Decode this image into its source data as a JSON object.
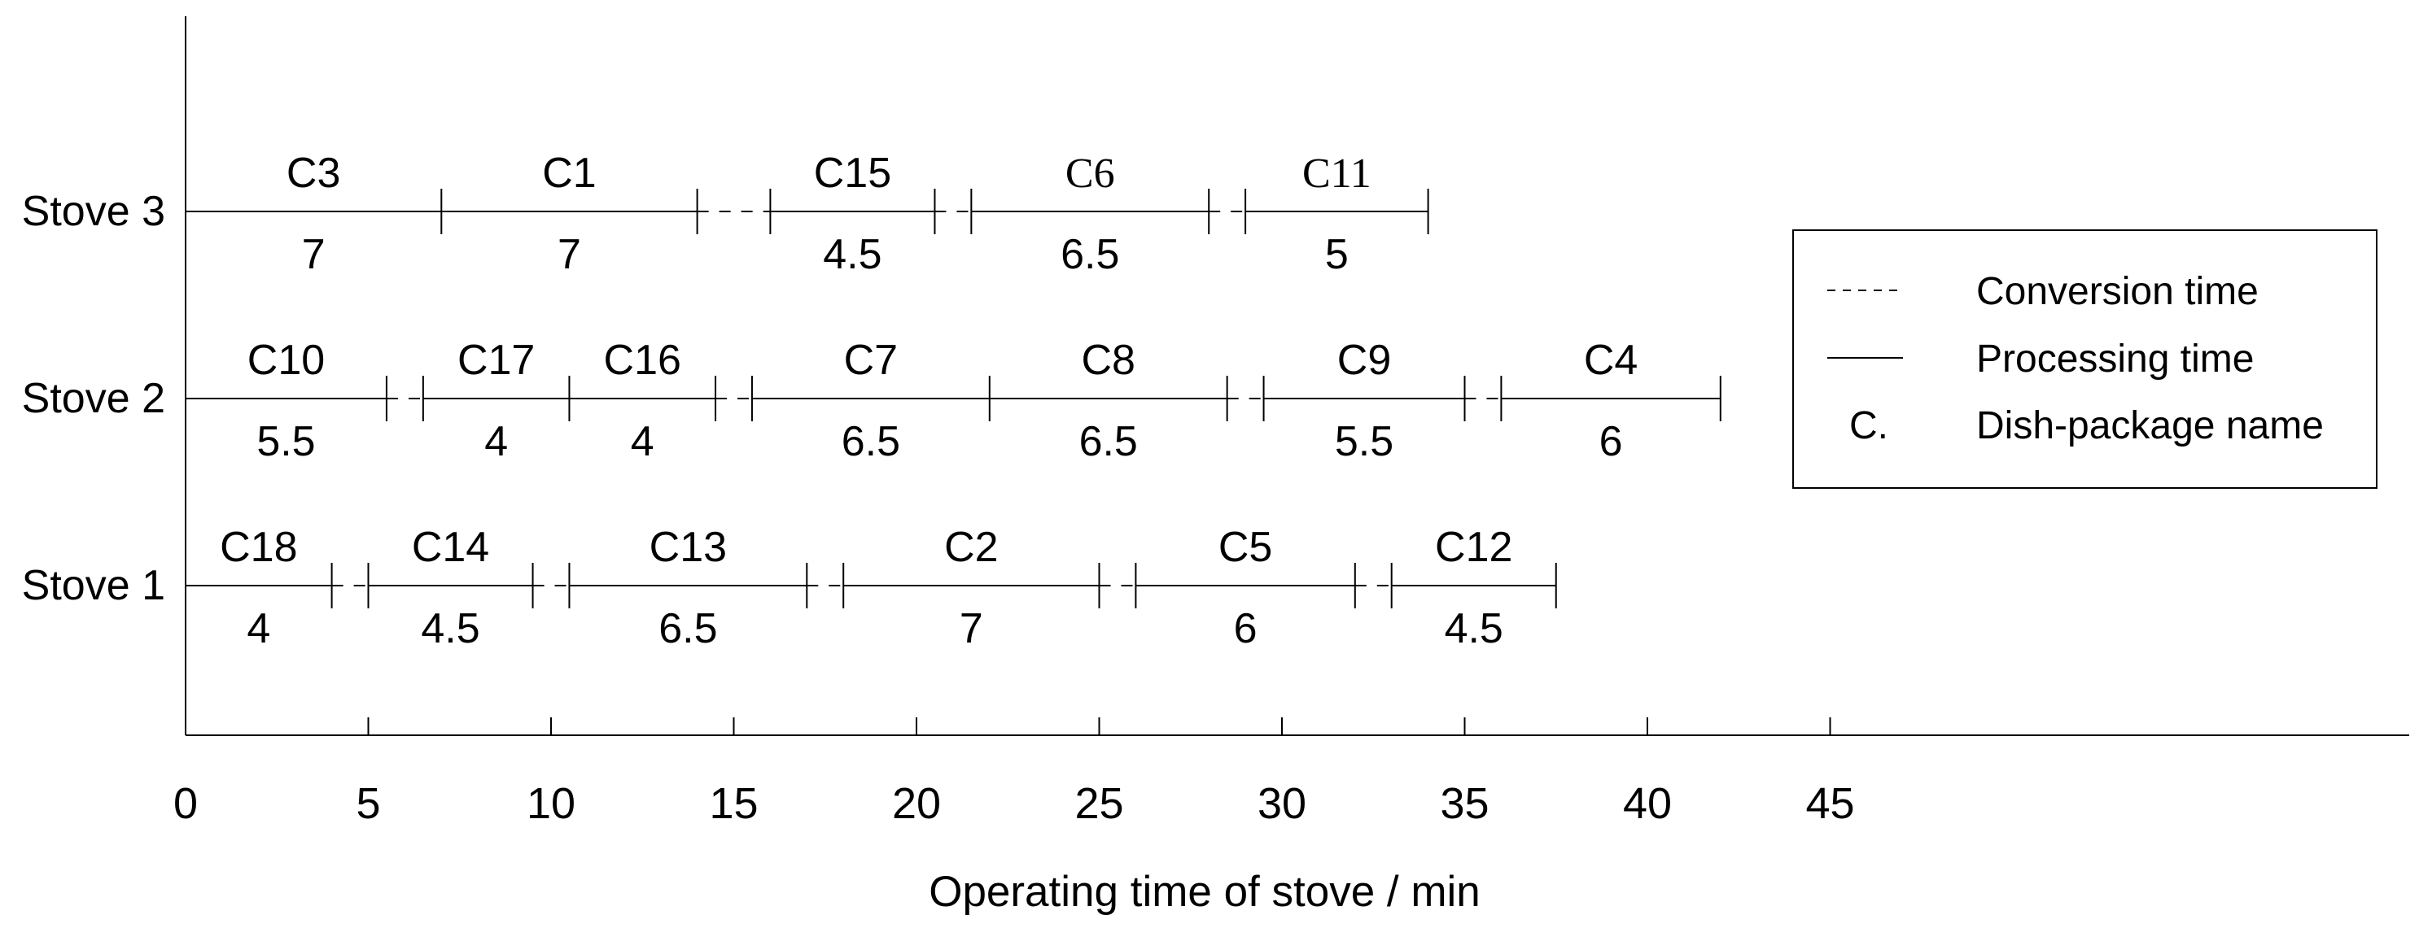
{
  "chart_data": {
    "type": "gantt",
    "title": "",
    "xlabel": "Operating time of stove / min",
    "ylabel": "",
    "x_ticks": [
      0,
      5,
      10,
      15,
      20,
      25,
      30,
      35,
      40,
      45
    ],
    "xlim": [
      0,
      61
    ],
    "grid": false,
    "legend": {
      "position": "right",
      "items": [
        {
          "sample": "dashed-line",
          "label": "Conversion time"
        },
        {
          "sample": "solid-line",
          "label": "Processing time"
        },
        {
          "sample": "C.",
          "label": "Dish-package name"
        }
      ]
    },
    "rows": [
      {
        "label": "Stove 3",
        "segments": [
          {
            "kind": "processing",
            "name": "C3",
            "duration": 7,
            "start": 0,
            "end": 7
          },
          {
            "kind": "processing",
            "name": "C1",
            "duration": 7,
            "start": 7,
            "end": 14
          },
          {
            "kind": "conversion",
            "start": 14,
            "end": 16
          },
          {
            "kind": "processing",
            "name": "C15",
            "duration": 4.5,
            "start": 16,
            "end": 20.5
          },
          {
            "kind": "conversion",
            "start": 20.5,
            "end": 21.5
          },
          {
            "kind": "processing",
            "name": "C6",
            "duration": 6.5,
            "start": 21.5,
            "end": 28,
            "serif": true
          },
          {
            "kind": "conversion",
            "start": 28,
            "end": 29
          },
          {
            "kind": "processing",
            "name": "C11",
            "duration": 5,
            "start": 29,
            "end": 34,
            "serif": true
          }
        ]
      },
      {
        "label": "Stove 2",
        "segments": [
          {
            "kind": "processing",
            "name": "C10",
            "duration": 5.5,
            "start": 0,
            "end": 5.5
          },
          {
            "kind": "conversion",
            "start": 5.5,
            "end": 6.5
          },
          {
            "kind": "processing",
            "name": "C17",
            "duration": 4,
            "start": 6.5,
            "end": 10.5
          },
          {
            "kind": "processing",
            "name": "C16",
            "duration": 4,
            "start": 10.5,
            "end": 14.5
          },
          {
            "kind": "conversion",
            "start": 14.5,
            "end": 15.5
          },
          {
            "kind": "processing",
            "name": "C7",
            "duration": 6.5,
            "start": 15.5,
            "end": 22
          },
          {
            "kind": "processing",
            "name": "C8",
            "duration": 6.5,
            "start": 22,
            "end": 28.5
          },
          {
            "kind": "conversion",
            "start": 28.5,
            "end": 29.5
          },
          {
            "kind": "processing",
            "name": "C9",
            "duration": 5.5,
            "start": 29.5,
            "end": 35
          },
          {
            "kind": "conversion",
            "start": 35,
            "end": 36
          },
          {
            "kind": "processing",
            "name": "C4",
            "duration": 6,
            "start": 36,
            "end": 42
          }
        ]
      },
      {
        "label": "Stove 1",
        "segments": [
          {
            "kind": "processing",
            "name": "C18",
            "duration": 4,
            "start": 0,
            "end": 4
          },
          {
            "kind": "conversion",
            "start": 4,
            "end": 5
          },
          {
            "kind": "processing",
            "name": "C14",
            "duration": 4.5,
            "start": 5,
            "end": 9.5
          },
          {
            "kind": "conversion",
            "start": 9.5,
            "end": 10.5
          },
          {
            "kind": "processing",
            "name": "C13",
            "duration": 6.5,
            "start": 10.5,
            "end": 17
          },
          {
            "kind": "conversion",
            "start": 17,
            "end": 18
          },
          {
            "kind": "processing",
            "name": "C2",
            "duration": 7,
            "start": 18,
            "end": 25
          },
          {
            "kind": "conversion",
            "start": 25,
            "end": 26
          },
          {
            "kind": "processing",
            "name": "C5",
            "duration": 6,
            "start": 26,
            "end": 32
          },
          {
            "kind": "conversion",
            "start": 32,
            "end": 33
          },
          {
            "kind": "processing",
            "name": "C12",
            "duration": 4.5,
            "start": 33,
            "end": 37.5
          }
        ]
      }
    ]
  }
}
